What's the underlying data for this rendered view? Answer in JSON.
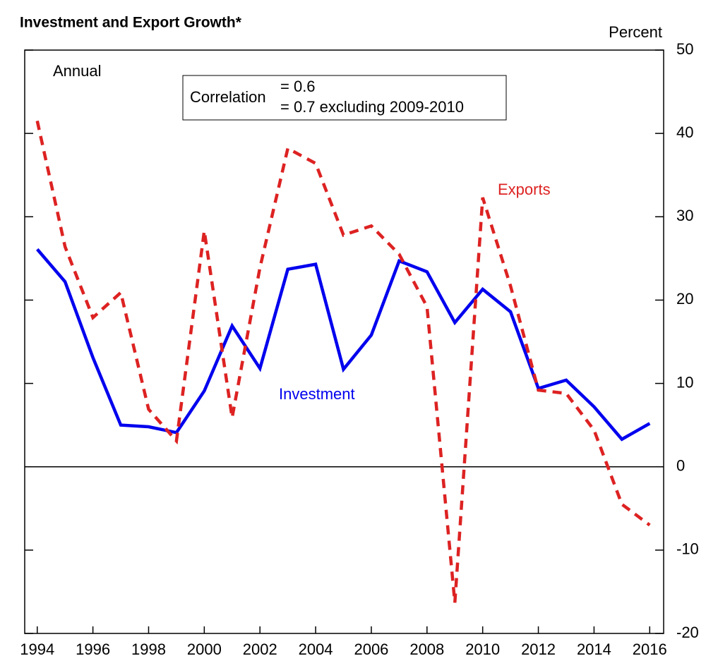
{
  "chart_data": {
    "type": "line",
    "title": "Investment and Export Growth*",
    "y_axis_label": "Percent",
    "annotations": {
      "frequency": "Annual",
      "correlation_label": "Correlation",
      "correlation_all": "= 0.6",
      "correlation_excl": "= 0.7 excluding 2009-2010"
    },
    "x": [
      1994,
      1995,
      1996,
      1997,
      1998,
      1999,
      2000,
      2001,
      2002,
      2003,
      2004,
      2005,
      2006,
      2007,
      2008,
      2009,
      2010,
      2011,
      2012,
      2013,
      2014,
      2015,
      2016
    ],
    "series": [
      {
        "name": "Investment",
        "color": "#0000ee",
        "dashed": false,
        "values": [
          26.1,
          22.2,
          13.1,
          5.0,
          4.8,
          4.1,
          9.1,
          16.9,
          11.8,
          23.7,
          24.3,
          11.7,
          15.8,
          24.7,
          23.4,
          17.3,
          21.3,
          18.6,
          9.4,
          10.4,
          7.2,
          3.3,
          5.2
        ]
      },
      {
        "name": "Exports",
        "color": "#dd2222",
        "dashed": true,
        "values": [
          41.5,
          26.4,
          17.9,
          20.9,
          6.9,
          3.1,
          28.3,
          5.9,
          23.9,
          38.2,
          36.4,
          27.8,
          28.9,
          25.5,
          19.2,
          -16.3,
          32.3,
          21.7,
          9.2,
          8.8,
          4.4,
          -4.5,
          -7.0
        ]
      }
    ],
    "xlim": [
      1993.55,
      2016.5
    ],
    "xticks": [
      1994,
      1996,
      1998,
      2000,
      2002,
      2004,
      2006,
      2008,
      2010,
      2012,
      2014,
      2016
    ],
    "ylim": [
      -20,
      50
    ],
    "yticks": [
      -20,
      -10,
      0,
      10,
      20,
      30,
      40,
      50
    ],
    "zero_line": true
  }
}
